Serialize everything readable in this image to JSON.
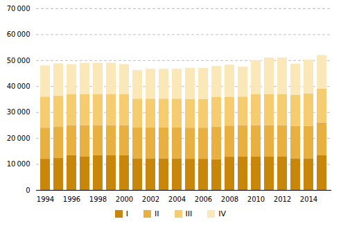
{
  "chart_data": {
    "type": "bar",
    "stacked": true,
    "categories": [
      "1994",
      null,
      "1996",
      null,
      "1998",
      null,
      "2000",
      null,
      "2002",
      null,
      "2004",
      null,
      "2006",
      null,
      "2008",
      null,
      "2010",
      null,
      "2012",
      null,
      "2014",
      null
    ],
    "series": [
      {
        "name": "I",
        "color": "#c8860a",
        "values": [
          12000,
          12300,
          13500,
          13000,
          13500,
          13500,
          13500,
          12200,
          12200,
          12200,
          12200,
          12000,
          12000,
          11800,
          12800,
          13000,
          13000,
          13000,
          13000,
          12200,
          12200,
          13500
        ]
      },
      {
        "name": "II",
        "color": "#e8b040",
        "values": [
          12000,
          12000,
          11500,
          12000,
          11500,
          11500,
          11500,
          12000,
          12000,
          12000,
          12000,
          12000,
          12000,
          12500,
          12000,
          12000,
          12000,
          12000,
          12000,
          12500,
          12500,
          12500
        ]
      },
      {
        "name": "III",
        "color": "#f5cc70",
        "values": [
          12000,
          12000,
          12000,
          12000,
          12000,
          12000,
          12000,
          11000,
          11000,
          11000,
          11000,
          11000,
          11000,
          11500,
          11000,
          11000,
          12000,
          12000,
          12000,
          12000,
          12500,
          13000
        ]
      },
      {
        "name": "IV",
        "color": "#fae8b8",
        "values": [
          12000,
          12500,
          11500,
          12000,
          12000,
          12000,
          11500,
          11000,
          11500,
          11500,
          11500,
          12000,
          12000,
          12000,
          12500,
          11500,
          13000,
          14000,
          14000,
          12000,
          13000,
          13000
        ]
      }
    ],
    "ylim": [
      0,
      70000
    ],
    "yticks": [
      0,
      {
        "value": 10000,
        "label": "10 000"
      },
      {
        "value": 20000,
        "label": "20 000"
      },
      {
        "value": 30000,
        "label": "30 000"
      },
      {
        "value": 40000,
        "label": "40 000"
      },
      {
        "value": 50000,
        "label": "50 000"
      },
      {
        "value": 60000,
        "label": "60 000"
      },
      {
        "value": 70000,
        "label": "70 000"
      }
    ],
    "grid": true,
    "legend": "bottom"
  }
}
